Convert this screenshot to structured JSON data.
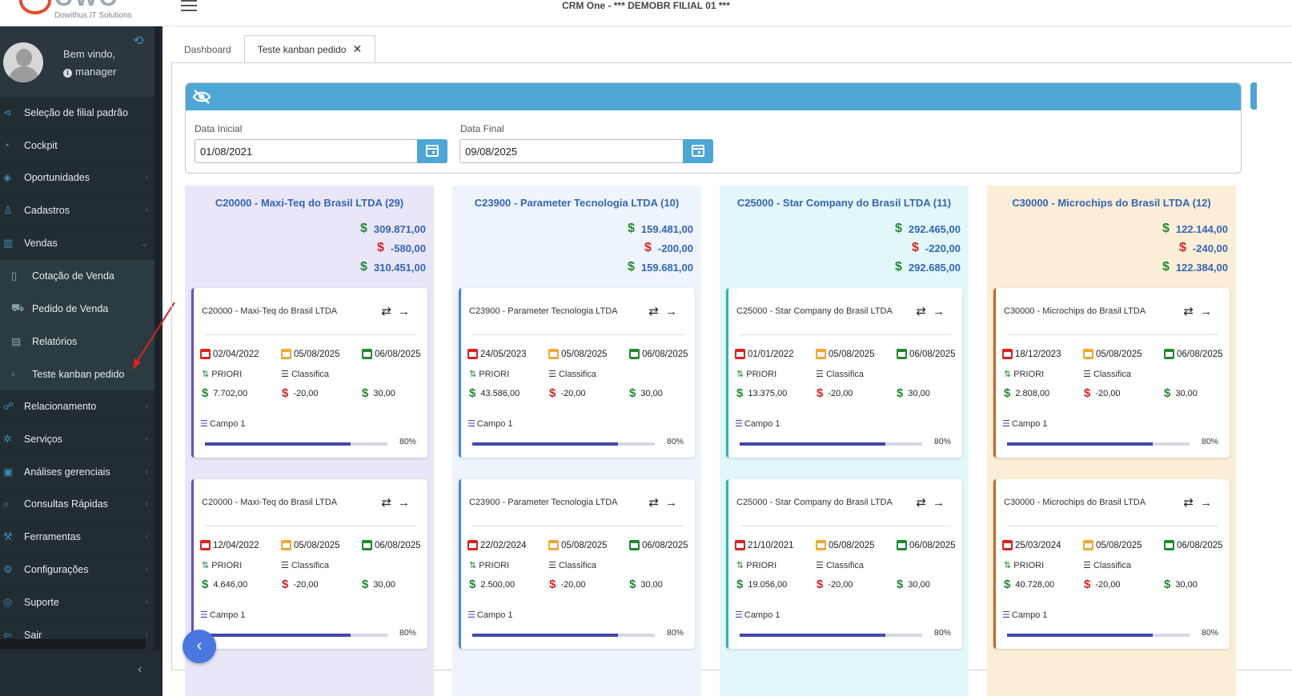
{
  "app": {
    "title": "CRM One - *** DEMOBR FILIAL 01 ***",
    "logo_text": "OWO",
    "logo_sub": "Dowithus IT Solutions"
  },
  "user": {
    "welcome": "Bem vindo,",
    "name": "manager"
  },
  "sidebar": {
    "items": [
      {
        "label": "Seleção de filial padrão",
        "icon": "share-icon",
        "chev": false
      },
      {
        "label": "Cockpit",
        "icon": "gauge-icon",
        "chev": false
      },
      {
        "label": "Oportunidades",
        "icon": "layers-icon",
        "chev": true
      },
      {
        "label": "Cadastros",
        "icon": "user-icon",
        "chev": true
      },
      {
        "label": "Vendas",
        "icon": "bar-chart-icon",
        "chev": true,
        "open": true
      }
    ],
    "vendas_sub": [
      {
        "label": "Cotação de Venda",
        "icon": "document-icon"
      },
      {
        "label": "Pedido de Venda",
        "icon": "cart-icon"
      },
      {
        "label": "Relatórios",
        "icon": "book-icon"
      },
      {
        "label": "Teste kanban pedido",
        "icon": "file-icon"
      }
    ],
    "items_after": [
      {
        "label": "Relacionamento",
        "icon": "users-icon"
      },
      {
        "label": "Serviços",
        "icon": "cog-icon"
      },
      {
        "label": "Análises gerenciais",
        "icon": "report-icon"
      },
      {
        "label": "Consultas Rápidas",
        "icon": "search-icon"
      },
      {
        "label": "Ferramentas",
        "icon": "wrench-icon"
      },
      {
        "label": "Configurações",
        "icon": "settings-icon"
      },
      {
        "label": "Suporte",
        "icon": "support-icon"
      },
      {
        "label": "Sair",
        "icon": "logout-icon"
      }
    ]
  },
  "tabs": [
    {
      "label": "Dashboard",
      "active": false
    },
    {
      "label": "Teste kanban pedido",
      "active": true
    }
  ],
  "filter": {
    "start_label": "Data Inicial",
    "start_value": "01/08/2021",
    "end_label": "Data Final",
    "end_value": "09/08/2025"
  },
  "colors": {
    "accent": "#4ea6d6",
    "sidebar": "#222d32",
    "title_blue": "#3465b8",
    "green": "#1e8b2f",
    "red": "#e02020"
  },
  "columns": [
    {
      "title": "C20000 - Maxi-Teq do Brasil LTDA (29)",
      "bg": "#e9e6f8",
      "border": "#6a4fc8",
      "totals": [
        "309.871,00",
        "-580,00",
        "310.451,00"
      ],
      "cards": [
        {
          "title": "C20000 - Maxi-Teq do Brasil LTDA",
          "d1": "02/04/2022",
          "d2": "05/08/2025",
          "d3": "06/08/2025",
          "prio": "PRIORI",
          "classif": "Classifica",
          "v1": "7.702,00",
          "v2": "-20,00",
          "v3": "30,00",
          "campo": "Campo 1",
          "pct": "80%"
        },
        {
          "title": "C20000 - Maxi-Teq do Brasil LTDA",
          "d1": "12/04/2022",
          "d2": "05/08/2025",
          "d3": "06/08/2025",
          "prio": "PRIORI",
          "classif": "Classifica",
          "v1": "4.646,00",
          "v2": "-20,00",
          "v3": "30,00",
          "campo": "Campo 1",
          "pct": "80%"
        }
      ]
    },
    {
      "title": "C23900 - Parameter Tecnologia LTDA (10)",
      "bg": "#eef4fc",
      "border": "#4a86d8",
      "totals": [
        "159.481,00",
        "-200,00",
        "159.681,00"
      ],
      "cards": [
        {
          "title": "C23900 - Parameter Tecnologia LTDA",
          "d1": "24/05/2023",
          "d2": "05/08/2025",
          "d3": "06/08/2025",
          "prio": "PRIORI",
          "classif": "Classifica",
          "v1": "43.586,00",
          "v2": "-20,00",
          "v3": "30,00",
          "campo": "Campo 1",
          "pct": "80%"
        },
        {
          "title": "C23900 - Parameter Tecnologia LTDA",
          "d1": "22/02/2024",
          "d2": "05/08/2025",
          "d3": "06/08/2025",
          "prio": "PRIORI",
          "classif": "Classifica",
          "v1": "2.500,00",
          "v2": "-20,00",
          "v3": "30,00",
          "campo": "Campo 1",
          "pct": "80%"
        }
      ]
    },
    {
      "title": "C25000 - Star Company do Brasil LTDA (11)",
      "bg": "#e2f8f8",
      "border": "#2cb5b0",
      "totals": [
        "292.465,00",
        "-220,00",
        "292.685,00"
      ],
      "cards": [
        {
          "title": "C25000 - Star Company do Brasil LTDA",
          "d1": "01/01/2022",
          "d2": "05/08/2025",
          "d3": "06/08/2025",
          "prio": "PRIORI",
          "classif": "Classifica",
          "v1": "13.375,00",
          "v2": "-20,00",
          "v3": "30,00",
          "campo": "Campo 1",
          "pct": "80%"
        },
        {
          "title": "C25000 - Star Company do Brasil LTDA",
          "d1": "21/10/2021",
          "d2": "05/08/2025",
          "d3": "06/08/2025",
          "prio": "PRIORI",
          "classif": "Classifica",
          "v1": "19.056,00",
          "v2": "-20,00",
          "v3": "30,00",
          "campo": "Campo 1",
          "pct": "80%"
        }
      ]
    },
    {
      "title": "C30000 - Microchips do Brasil LTDA (12)",
      "bg": "#fbeed7",
      "border": "#c06a28",
      "totals": [
        "122.144,00",
        "-240,00",
        "122.384,00"
      ],
      "cards": [
        {
          "title": "C30000 - Microchips do Brasil LTDA",
          "d1": "18/12/2023",
          "d2": "05/08/2025",
          "d3": "06/08/2025",
          "prio": "PRIORI",
          "classif": "Classifica",
          "v1": "2.808,00",
          "v2": "-20,00",
          "v3": "30,00",
          "campo": "Campo 1",
          "pct": "80%"
        },
        {
          "title": "C30000 - Microchips do Brasil LTDA",
          "d1": "25/03/2024",
          "d2": "05/08/2025",
          "d3": "06/08/2025",
          "prio": "PRIORI",
          "classif": "Classifica",
          "v1": "40.728,00",
          "v2": "-20,00",
          "v3": "30,00",
          "campo": "Campo 1",
          "pct": "80%"
        }
      ]
    }
  ]
}
